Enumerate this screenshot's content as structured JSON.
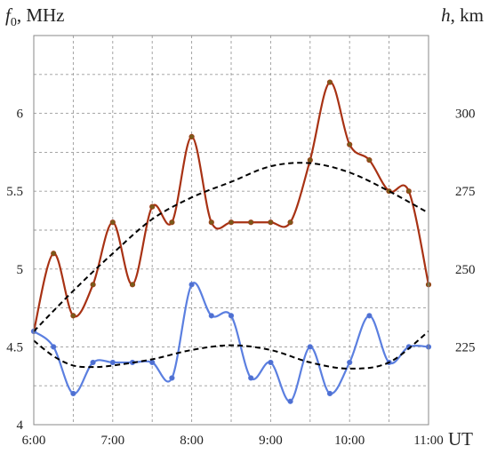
{
  "chart_data": {
    "type": "line",
    "xlabel": "UT",
    "left_axis": {
      "symbol": "f",
      "subscript": "0",
      "unit": ", MHz",
      "ylim": [
        4,
        6.5
      ],
      "ticks": [
        "4",
        "4.5",
        "5",
        "5.5",
        "6"
      ],
      "tick_values": [
        4,
        4.5,
        5,
        5.5,
        6
      ]
    },
    "right_axis": {
      "symbol": "h",
      "unit": ", km",
      "ylim": [
        200,
        325
      ],
      "ticks": [
        "225",
        "250",
        "275",
        "300"
      ],
      "tick_values": [
        225,
        250,
        275,
        300
      ]
    },
    "x_ticks": [
      "6:00",
      "7:00",
      "8:00",
      "9:00",
      "10:00",
      "11:00"
    ],
    "x_tick_values": [
      6,
      7,
      8,
      9,
      10,
      11
    ],
    "xlim": [
      6,
      11
    ],
    "grid": true,
    "series": [
      {
        "axis": "left",
        "color": "#a83214",
        "marker_color": "#7a5a1a",
        "style": "solid-smooth",
        "x": [
          6,
          6.25,
          6.5,
          6.75,
          7,
          7.25,
          7.5,
          7.75,
          8,
          8.25,
          8.5,
          8.75,
          9,
          9.25,
          9.5,
          9.75,
          10,
          10.25,
          10.5,
          10.75,
          11
        ],
        "values": [
          4.6,
          5.1,
          4.7,
          4.9,
          5.3,
          4.9,
          5.4,
          5.3,
          5.85,
          5.3,
          5.3,
          5.3,
          5.3,
          5.3,
          5.7,
          6.2,
          5.8,
          5.7,
          5.5,
          5.5,
          4.9
        ]
      },
      {
        "axis": "left",
        "color": "#5b7fe0",
        "marker_color": "#4f6fd0",
        "style": "solid-smooth",
        "x": [
          6,
          6.25,
          6.5,
          6.75,
          7,
          7.25,
          7.5,
          7.75,
          8,
          8.25,
          8.5,
          8.75,
          9,
          9.25,
          9.5,
          9.75,
          10,
          10.25,
          10.5,
          10.75,
          11
        ],
        "values": [
          4.6,
          4.5,
          4.2,
          4.4,
          4.4,
          4.4,
          4.4,
          4.3,
          4.9,
          4.7,
          4.7,
          4.3,
          4.4,
          4.15,
          4.5,
          4.2,
          4.4,
          4.7,
          4.4,
          4.5,
          4.5
        ]
      },
      {
        "axis": "right",
        "color": "#000000",
        "style": "dashed",
        "x": [
          6,
          6.5,
          7,
          7.5,
          8,
          8.5,
          9,
          9.5,
          10,
          10.5,
          11
        ],
        "values": [
          230,
          243,
          255,
          266,
          273,
          278,
          283,
          284,
          281,
          275,
          268
        ]
      },
      {
        "axis": "right",
        "color": "#000000",
        "style": "dashed",
        "x": [
          6,
          6.25,
          6.5,
          6.75,
          7,
          7.5,
          8,
          8.5,
          9,
          9.5,
          10,
          10.5,
          11
        ],
        "values": [
          227,
          222,
          219,
          218.5,
          219,
          221,
          224,
          225.5,
          224,
          220,
          218,
          220,
          230
        ]
      }
    ]
  }
}
